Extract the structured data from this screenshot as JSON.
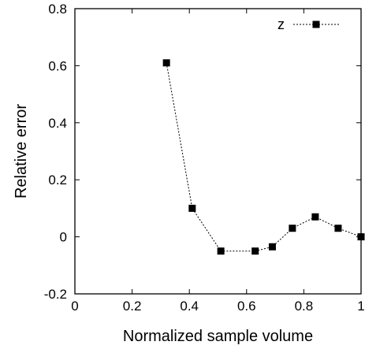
{
  "chart_data": {
    "type": "line",
    "xlabel": "Normalized sample volume",
    "ylabel": "Relative error",
    "xlim": [
      0,
      1
    ],
    "ylim": [
      -0.2,
      0.8
    ],
    "xticks": [
      "0",
      "0.2",
      "0.4",
      "0.6",
      "0.8",
      "1"
    ],
    "yticks": [
      "-0.2",
      "0",
      "0.2",
      "0.4",
      "0.6",
      "0.8"
    ],
    "grid": false,
    "legend_position": "top-right",
    "series": [
      {
        "name": "z",
        "line_style": "dotted",
        "marker": "filled-square",
        "color": "#000000",
        "x": [
          0.32,
          0.41,
          0.51,
          0.63,
          0.69,
          0.76,
          0.84,
          0.92,
          1.0
        ],
        "y": [
          0.61,
          0.1,
          -0.05,
          -0.05,
          -0.035,
          0.03,
          0.07,
          0.03,
          0.0
        ]
      }
    ]
  }
}
